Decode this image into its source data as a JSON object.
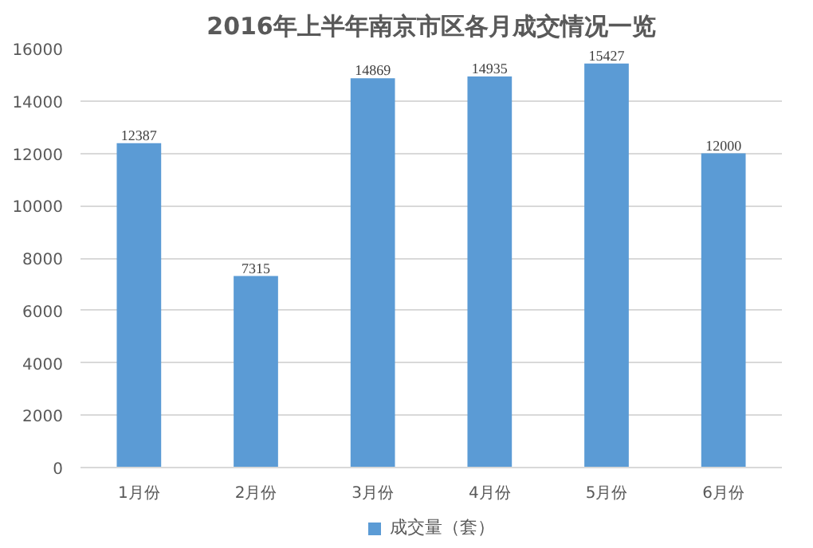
{
  "chart_data": {
    "type": "bar",
    "title": "2016年上半年南京市区各月成交情况一览",
    "categories": [
      "1月份",
      "2月份",
      "3月份",
      "4月份",
      "5月份",
      "6月份"
    ],
    "series": [
      {
        "name": "成交量（套）",
        "color": "#5b9bd5",
        "values": [
          12387,
          7315,
          14869,
          14935,
          15427,
          12000
        ]
      }
    ],
    "ylim": [
      0,
      16000
    ],
    "yticks": [
      0,
      2000,
      4000,
      6000,
      8000,
      10000,
      12000,
      14000,
      16000
    ],
    "grid": "y",
    "legend": "bottom",
    "data_labels": true
  }
}
